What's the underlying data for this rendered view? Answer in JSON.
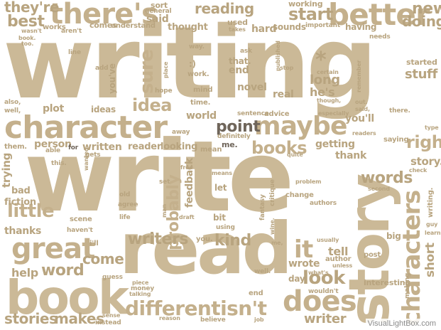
{
  "words": {
    "writing": "writing",
    "write": "write",
    "read": "read",
    "story": "story",
    "book": "book",
    "character": "character",
    "characters": "characters",
    "better": "better",
    "theres": "there's",
    "maybe": "maybe",
    "great": "great",
    "differentisnt": "differentisn't",
    "does": "does",
    "reading": "reading",
    "start": "start",
    "point": "point",
    "books": "books",
    "words": "words",
    "little": "little",
    "look": "look",
    "it": "it",
    "idea": "idea",
    "sure": "sure",
    "probably": "probably",
    "stories": "stories",
    "makes": "makes",
    "writers": "writers",
    "come": "come",
    "word": "word",
    "kind": "kind",
    "right": "right",
    "new": "new",
    "doing": "doing",
    "best": "best",
    "theyre": "they're",
    "writer": "writer",
    "help": "help",
    "thanks": "thanks",
    "fiction": "fiction",
    "bad": "bad",
    "trying": "trying",
    "stuff": "stuff",
    "story_small": "story.",
    "short": "short",
    "tell": "tell",
    "wrote": "wrote",
    "long": "long",
    "hes": "he's",
    "youll": "you'll",
    "getting": "getting",
    "thank": "thank",
    "written": "written",
    "reader": "reader",
    "looking": "looking",
    "person": "person",
    "plot": "plot",
    "ideas": "ideas",
    "world": "world",
    "novel": "novel",
    "end": "end",
    "real": "real",
    "said": "said",
    "thought": "thought",
    "hard": "hard",
    "sounds": "sounds",
    "important": "important",
    "used": "used",
    "having": "having",
    "working": "working",
    "sort": "sort",
    "general": "general",
    "comes": "comes",
    "understand": "understand",
    "works": "works",
    "arent": "aren't",
    "wasnt": "wasn't",
    "book_small": "book.",
    "too": "too.",
    "also": "also,",
    "well": "well,",
    "them": "them.",
    "able": "able",
    "this": "this.",
    "for": "for",
    "gets": "gets",
    "wanted": "wanted",
    "youve": "you've",
    "hope": "hope",
    "mind": "mind",
    "time": "time.",
    "work": "work.",
    "way": "way.",
    "that": "that.",
    "ask": "ask",
    "published": "published",
    "stop": "stop",
    "certain": "certain",
    "remember": "remember",
    "started": "started",
    "needs": "needs",
    "takes": "takes",
    "smile": ":)",
    "asterisk": "*",
    "sentence": "sentence",
    "advice": "advice",
    "especially": "especially",
    "definitely": "definitely",
    "away": "away",
    "me": "me.",
    "mean": "mean",
    "readers": "readers",
    "quite": "quite",
    "saying": "saying",
    "check": "check",
    "type": "type",
    "there": "there.",
    "out": "out.",
    "said_small": "said,",
    "means": "means",
    "free": "free",
    "let": "let",
    "set": "set",
    "feedback": "feedback",
    "critique": "critique",
    "fantasy": "fantasy",
    "problem": "problem",
    "second": "second",
    "writing_small": "writing.",
    "change": "change",
    "authors": "authors",
    "bit": "bit",
    "using": "using",
    "you": "you.",
    "me_small": "me,",
    "usually": "usually",
    "author": "author",
    "unless": "unless",
    "post": "post",
    "big": "big",
    "guy": "guy",
    "learn": "learn",
    "interesting": "interesting",
    "making": "making",
    "whats": "what's",
    "wouldnt": "wouldn't",
    "day": "day",
    "well_small": "well.",
    "money": "money",
    "piece": "piece",
    "talking": "talking",
    "guess": "guess",
    "instead": "instead",
    "sense": "sense",
    "reason": "reason",
    "believe": "believe",
    "job": "job",
    "scene": "scene",
    "havent": "haven't",
    "life": "life",
    "agree": "agree",
    "old": "old",
    "man": "man",
    "draft": "draft",
    "add": "add",
    "line": "line",
    "place": "place",
    "though": "though,",
    "ill": "i'll",
    "wine": "wine."
  },
  "colors": {
    "primary": "#cbb997",
    "secondary": "#c4b08c",
    "tertiary": "#b8a47f",
    "light": "#d8ccb4",
    "muted": "#a8987a",
    "dark": "#6f655a",
    "faint": "#e2d8c4"
  },
  "watermark": "VisualLightBox.com"
}
